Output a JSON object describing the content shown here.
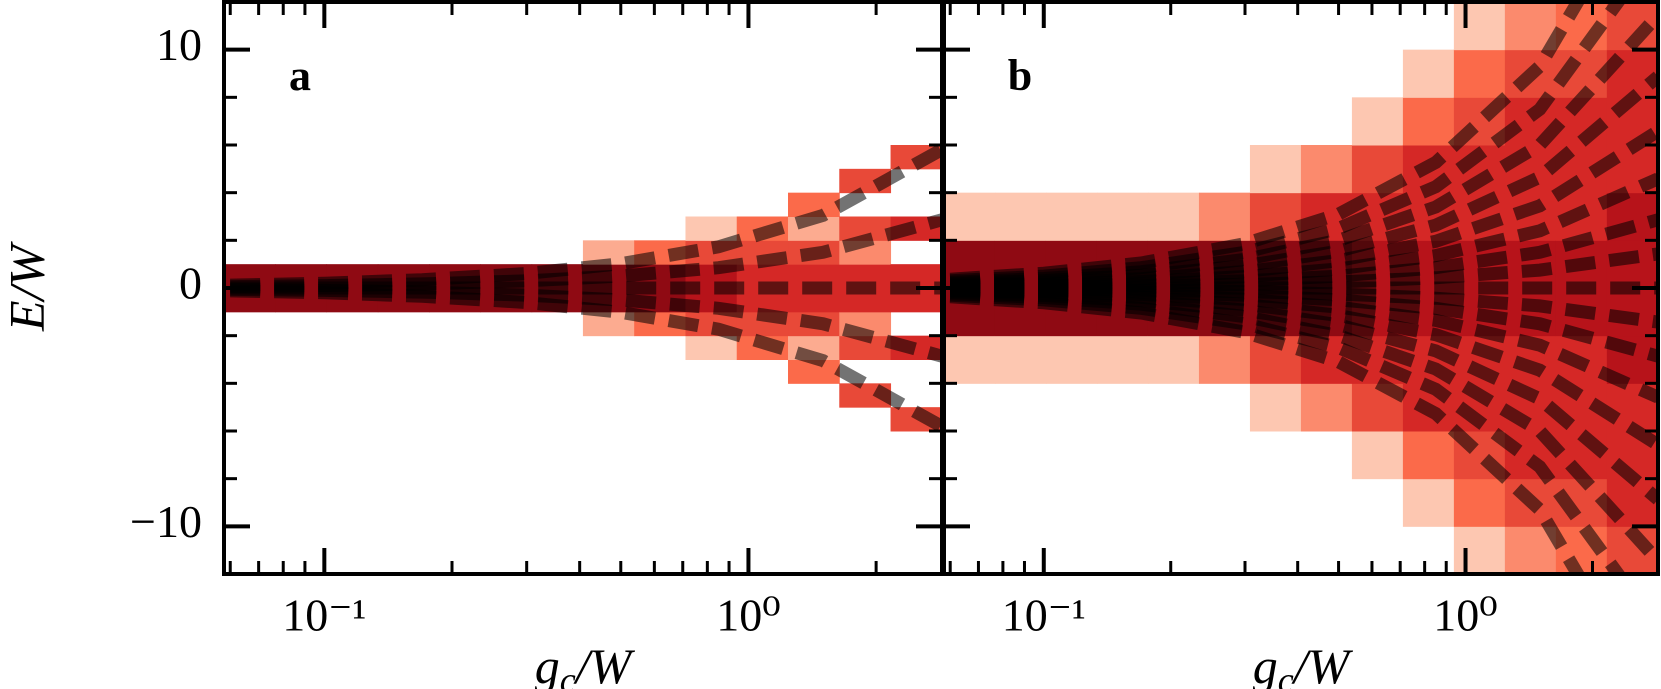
{
  "chart_data": [
    {
      "type": "heatmap",
      "panel_label": "a",
      "x_label": "gc/W",
      "y_label": "E/W",
      "log_x": true,
      "xlim": [
        0.058,
        2.86
      ],
      "xticks": [
        {
          "value": 0.1,
          "label": "10⁻¹"
        },
        {
          "value": 1,
          "label": "10⁰"
        }
      ],
      "xminorticks": [
        0.06,
        0.07,
        0.08,
        0.09,
        0.2,
        0.3,
        0.4,
        0.5,
        0.6,
        0.7,
        0.8,
        0.9,
        2
      ],
      "ylim": [
        -12,
        12
      ],
      "yticks": [
        {
          "value": -10,
          "label": "−10"
        },
        0,
        10
      ],
      "yminorticks": [
        -8,
        -6,
        -4,
        -2,
        2,
        4,
        6,
        8
      ],
      "colormap": "Reds",
      "x_edges": [
        0.058,
        0.0766,
        0.1012,
        0.1337,
        0.1766,
        0.2333,
        0.3082,
        0.4071,
        0.5378,
        0.7104,
        0.9384,
        1.2396,
        1.6375,
        2.163,
        2.86
      ],
      "y_edges": [
        -7,
        -6,
        -5,
        -4,
        -3,
        -2,
        -1,
        0,
        1,
        2,
        3,
        4,
        5,
        6,
        7
      ],
      "z": [
        [
          0,
          0,
          0,
          0,
          0,
          0,
          0.9,
          0.9,
          0,
          0,
          0,
          0,
          0,
          0
        ],
        [
          0,
          0,
          0,
          0,
          0,
          0,
          0.9,
          0.9,
          0,
          0,
          0,
          0,
          0,
          0
        ],
        [
          0,
          0,
          0,
          0,
          0,
          0,
          0.9,
          0.9,
          0,
          0,
          0,
          0,
          0,
          0
        ],
        [
          0,
          0,
          0,
          0,
          0,
          0,
          0.9,
          0.9,
          0,
          0,
          0,
          0,
          0,
          0
        ],
        [
          0,
          0,
          0,
          0,
          0,
          0,
          0.9,
          0.9,
          0,
          0,
          0,
          0,
          0,
          0
        ],
        [
          0,
          0,
          0,
          0,
          0,
          0,
          0.9,
          0.9,
          0,
          0,
          0,
          0,
          0,
          0
        ],
        [
          0,
          0,
          0,
          0,
          0,
          0,
          0.9,
          0.9,
          0,
          0,
          0,
          0,
          0,
          0
        ],
        [
          0,
          0,
          0,
          0,
          0,
          0.3,
          0.9,
          0.9,
          0.3,
          0,
          0,
          0,
          0,
          0
        ],
        [
          0,
          0,
          0,
          0,
          0,
          0.5,
          0.9,
          0.9,
          0.5,
          0,
          0,
          0,
          0,
          0
        ],
        [
          0,
          0,
          0,
          0,
          0.2,
          0.6,
          0.8,
          0.8,
          0.6,
          0.2,
          0,
          0,
          0,
          0
        ],
        [
          0,
          0,
          0,
          0,
          0.5,
          0.6,
          0.7,
          0.7,
          0.6,
          0.5,
          0,
          0,
          0,
          0
        ],
        [
          0,
          0,
          0,
          0.5,
          0.3,
          0.6,
          0.7,
          0.7,
          0.6,
          0.3,
          0.5,
          0,
          0,
          0
        ],
        [
          0,
          0,
          0.6,
          0,
          0.6,
          0.4,
          0.7,
          0.7,
          0.4,
          0.6,
          0,
          0.6,
          0,
          0
        ],
        [
          0,
          0.6,
          0,
          0,
          0.7,
          0,
          0.7,
          0.7,
          0,
          0.7,
          0,
          0,
          0.6,
          0
        ]
      ],
      "lines": {
        "color": "rgba(0,0,0,0.55)",
        "x": [
          0.06,
          0.1,
          0.17,
          0.3,
          0.5,
          0.85,
          1.5,
          2.86
        ],
        "series": [
          {
            "values": [
              0.12,
              0.2,
              0.35,
              0.61,
              1.02,
              1.73,
              3.05,
              5.81
            ]
          },
          {
            "values": [
              0.06,
              0.1,
              0.17,
              0.3,
              0.5,
              0.85,
              1.5,
              2.86
            ]
          },
          {
            "values": [
              0,
              0,
              0,
              0,
              0,
              0,
              0,
              0
            ]
          },
          {
            "values": [
              -0.06,
              -0.1,
              -0.17,
              -0.3,
              -0.5,
              -0.85,
              -1.5,
              -2.86
            ]
          },
          {
            "values": [
              -0.12,
              -0.2,
              -0.35,
              -0.61,
              -1.02,
              -1.73,
              -3.05,
              -5.81
            ]
          }
        ]
      }
    },
    {
      "type": "heatmap",
      "panel_label": "b",
      "x_label": "gc/W",
      "shared_y": true,
      "log_x": true,
      "xlim": [
        0.058,
        2.86
      ],
      "xticks": [
        {
          "value": 0.1,
          "label": "10⁻¹"
        },
        {
          "value": 1,
          "label": "10⁰"
        }
      ],
      "xminorticks": [
        0.06,
        0.07,
        0.08,
        0.09,
        0.2,
        0.3,
        0.4,
        0.5,
        0.6,
        0.7,
        0.8,
        0.9,
        2
      ],
      "ylim": [
        -12,
        12
      ],
      "colormap": "Reds",
      "x_edges": [
        0.058,
        0.0766,
        0.1012,
        0.1337,
        0.1766,
        0.2333,
        0.3082,
        0.4071,
        0.5378,
        0.7104,
        0.9384,
        1.2396,
        1.6375,
        2.163,
        2.86
      ],
      "y_edges": [
        -12,
        -10,
        -8,
        -6,
        -4,
        -2,
        0,
        2,
        4,
        6,
        8,
        10,
        12
      ],
      "z": [
        [
          0,
          0,
          0,
          0,
          0.2,
          0.9,
          0.9,
          0.2,
          0,
          0,
          0,
          0
        ],
        [
          0,
          0,
          0,
          0,
          0.2,
          0.9,
          0.9,
          0.2,
          0,
          0,
          0,
          0
        ],
        [
          0,
          0,
          0,
          0,
          0.2,
          0.9,
          0.9,
          0.2,
          0,
          0,
          0,
          0
        ],
        [
          0,
          0,
          0,
          0,
          0.2,
          0.9,
          0.9,
          0.2,
          0,
          0,
          0,
          0
        ],
        [
          0,
          0,
          0,
          0,
          0.2,
          0.9,
          0.9,
          0.2,
          0,
          0,
          0,
          0
        ],
        [
          0,
          0,
          0,
          0,
          0.4,
          0.9,
          0.9,
          0.4,
          0,
          0,
          0,
          0
        ],
        [
          0,
          0,
          0,
          0.2,
          0.6,
          0.9,
          0.9,
          0.6,
          0.2,
          0,
          0,
          0
        ],
        [
          0,
          0,
          0,
          0.4,
          0.7,
          0.9,
          0.9,
          0.7,
          0.4,
          0,
          0,
          0
        ],
        [
          0,
          0,
          0.2,
          0.6,
          0.7,
          0.8,
          0.8,
          0.7,
          0.6,
          0.2,
          0,
          0
        ],
        [
          0,
          0.2,
          0.5,
          0.7,
          0.7,
          0.8,
          0.8,
          0.7,
          0.7,
          0.5,
          0.2,
          0
        ],
        [
          0.2,
          0.5,
          0.6,
          0.7,
          0.7,
          0.8,
          0.8,
          0.7,
          0.7,
          0.6,
          0.5,
          0.2
        ],
        [
          0.4,
          0.6,
          0.7,
          0.7,
          0.7,
          0.8,
          0.8,
          0.7,
          0.7,
          0.7,
          0.6,
          0.4
        ],
        [
          0.5,
          0.6,
          0.7,
          0.7,
          0.7,
          0.8,
          0.8,
          0.7,
          0.7,
          0.7,
          0.6,
          0.5
        ],
        [
          0.6,
          0.7,
          0.7,
          0.7,
          0.8,
          0.8,
          0.8,
          0.8,
          0.7,
          0.7,
          0.7,
          0.6
        ]
      ],
      "lines": {
        "color": "rgba(0,0,0,0.55)",
        "x": [
          0.06,
          0.1,
          0.17,
          0.3,
          0.5,
          0.85,
          1.5,
          2.86
        ],
        "series": [
          {
            "values": [
              0.37,
              0.62,
              1.05,
              1.86,
              3.1,
              5.27,
              9.3,
              17.73
            ]
          },
          {
            "values": [
              0.3,
              0.5,
              0.85,
              1.5,
              2.5,
              4.25,
              7.5,
              14.3
            ]
          },
          {
            "values": [
              0.24,
              0.4,
              0.68,
              1.2,
              2.0,
              3.4,
              6.0,
              11.44
            ]
          },
          {
            "values": [
              0.19,
              0.31,
              0.53,
              0.93,
              1.55,
              2.64,
              4.65,
              8.87
            ]
          },
          {
            "values": [
              0.14,
              0.23,
              0.39,
              0.69,
              1.15,
              1.96,
              3.45,
              6.58
            ]
          },
          {
            "values": [
              0.1,
              0.16,
              0.27,
              0.48,
              0.8,
              1.36,
              2.4,
              4.58
            ]
          },
          {
            "values": [
              0.06,
              0.1,
              0.17,
              0.3,
              0.5,
              0.85,
              1.5,
              2.86
            ]
          },
          {
            "values": [
              0.03,
              0.05,
              0.09,
              0.15,
              0.25,
              0.43,
              0.75,
              1.43
            ]
          },
          {
            "values": [
              0,
              0,
              0,
              0,
              0,
              0,
              0,
              0
            ]
          },
          {
            "values": [
              -0.03,
              -0.05,
              -0.09,
              -0.15,
              -0.25,
              -0.43,
              -0.75,
              -1.43
            ]
          },
          {
            "values": [
              -0.06,
              -0.1,
              -0.17,
              -0.3,
              -0.5,
              -0.85,
              -1.5,
              -2.86
            ]
          },
          {
            "values": [
              -0.1,
              -0.16,
              -0.27,
              -0.48,
              -0.8,
              -1.36,
              -2.4,
              -4.58
            ]
          },
          {
            "values": [
              -0.14,
              -0.23,
              -0.39,
              -0.69,
              -1.15,
              -1.96,
              -3.45,
              -6.58
            ]
          },
          {
            "values": [
              -0.19,
              -0.31,
              -0.53,
              -0.93,
              -1.55,
              -2.64,
              -4.65,
              -8.87
            ]
          },
          {
            "values": [
              -0.24,
              -0.4,
              -0.68,
              -1.2,
              -2.0,
              -3.4,
              -6.0,
              -11.44
            ]
          },
          {
            "values": [
              -0.3,
              -0.5,
              -0.85,
              -1.5,
              -2.5,
              -4.25,
              -7.5,
              -14.3
            ]
          },
          {
            "values": [
              -0.37,
              -0.62,
              -1.05,
              -1.86,
              -3.1,
              -5.27,
              -9.3,
              -17.73
            ]
          }
        ]
      }
    }
  ]
}
